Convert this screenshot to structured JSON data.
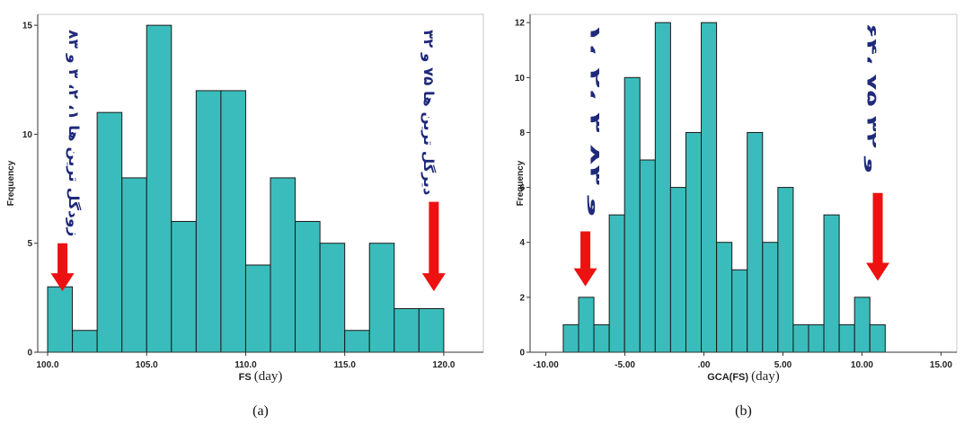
{
  "chart_data": [
    {
      "type": "bar",
      "panel_caption": "(a)",
      "xlabel": "FS",
      "xlabel_unit": "(day)",
      "ylabel": "Frequency",
      "xlim": [
        99.5,
        122.0
      ],
      "ylim": [
        0,
        15.5
      ],
      "x_ticks": [
        100.0,
        105.0,
        110.0,
        115.0,
        120.0
      ],
      "x_tick_labels": [
        "100.0",
        "105.0",
        "110.0",
        "115.0",
        "120.0"
      ],
      "y_ticks": [
        0,
        5,
        10,
        15
      ],
      "y_tick_labels": [
        "0",
        "5",
        "10",
        "15"
      ],
      "bin_width": 1.25,
      "bin_start": 100.0,
      "values": [
        3,
        1,
        11,
        8,
        15,
        6,
        12,
        12,
        4,
        8,
        6,
        5,
        1,
        5,
        2,
        2
      ],
      "bar_color": "#3bbcbc",
      "annotations": [
        {
          "text": "زودگل ترین ها ۱، ۲، ۳ و ۸۳",
          "arrow_x": 100.75,
          "arrow_y_top": 5.0,
          "arrow_y_bottom": 2.8,
          "text_x": 101.3,
          "text_y_top": 14.8,
          "text_y_bottom": 5.3
        },
        {
          "text": "دیرگل ترین ها ۷۵ و ۳۲",
          "arrow_x": 119.5,
          "arrow_y_top": 6.9,
          "arrow_y_bottom": 2.8,
          "text_x": 119.2,
          "text_y_top": 14.8,
          "text_y_bottom": 7.2
        }
      ],
      "arrow_color": "#ee1111"
    },
    {
      "type": "bar",
      "panel_caption": "(b)",
      "xlabel": "GCA(FS)",
      "xlabel_unit": "(day)",
      "ylabel": "Frequency",
      "xlim": [
        -11.0,
        16.0
      ],
      "ylim": [
        0,
        12.3
      ],
      "x_ticks": [
        -10.0,
        -5.0,
        0.0,
        5.0,
        10.0,
        15.0
      ],
      "x_tick_labels": [
        "-10.00",
        "-5.00",
        ".00",
        "5.00",
        "10.00",
        "15.00"
      ],
      "y_ticks": [
        0,
        2,
        4,
        6,
        8,
        10,
        12
      ],
      "y_tick_labels": [
        "0",
        "2",
        "4",
        "6",
        "8",
        "10",
        "12"
      ],
      "bin_width": 0.97,
      "bin_start": -8.9,
      "values": [
        1,
        2,
        1,
        5,
        10,
        7,
        12,
        6,
        8,
        12,
        4,
        3,
        8,
        4,
        6,
        1,
        1,
        5,
        1,
        2,
        1
      ],
      "bar_color": "#3bbcbc",
      "annotations": [
        {
          "text": "۱، ۲، ۳ و ۸۳",
          "arrow_x": -7.5,
          "arrow_y_top": 4.4,
          "arrow_y_bottom": 2.4,
          "text_x": -6.9,
          "text_y_top": 12.0,
          "text_y_bottom": 4.9
        },
        {
          "text": "۶۴، ۷۵ و ۳۲",
          "arrow_x": 11.0,
          "arrow_y_top": 5.8,
          "arrow_y_bottom": 2.6,
          "text_x": 10.6,
          "text_y_top": 12.0,
          "text_y_bottom": 6.5
        }
      ],
      "arrow_color": "#ee1111"
    }
  ]
}
